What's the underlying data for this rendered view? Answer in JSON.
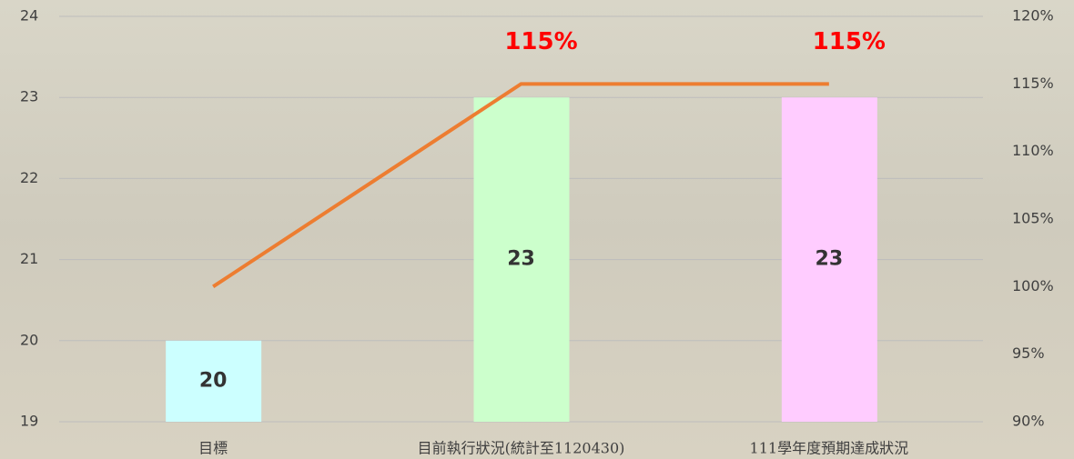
{
  "chart_data": {
    "type": "bar",
    "categories": [
      "目標",
      "目前執行狀況(統計至1120430)",
      "111學年度預期達成狀況"
    ],
    "series": [
      {
        "type": "bar",
        "colors": [
          "#ccffff",
          "#ccffcc",
          "#ffccff"
        ],
        "values": [
          20,
          23,
          23
        ]
      },
      {
        "type": "line",
        "axis": "y2",
        "color": "#ed7d31",
        "values": [
          100,
          115,
          115
        ],
        "value_labels": [
          null,
          "115%",
          "115%"
        ]
      }
    ],
    "ylim": [
      19,
      24
    ],
    "yticks": [
      19,
      20,
      21,
      22,
      23,
      24
    ],
    "y2lim": [
      90,
      120
    ],
    "y2ticks": [
      {
        "value": 90,
        "label": "90%"
      },
      {
        "value": 95,
        "label": "95%"
      },
      {
        "value": 100,
        "label": "100%"
      },
      {
        "value": 105,
        "label": "105%"
      },
      {
        "value": 110,
        "label": "110%"
      },
      {
        "value": 115,
        "label": "115%"
      },
      {
        "value": 120,
        "label": "120%"
      }
    ],
    "grid": true
  }
}
